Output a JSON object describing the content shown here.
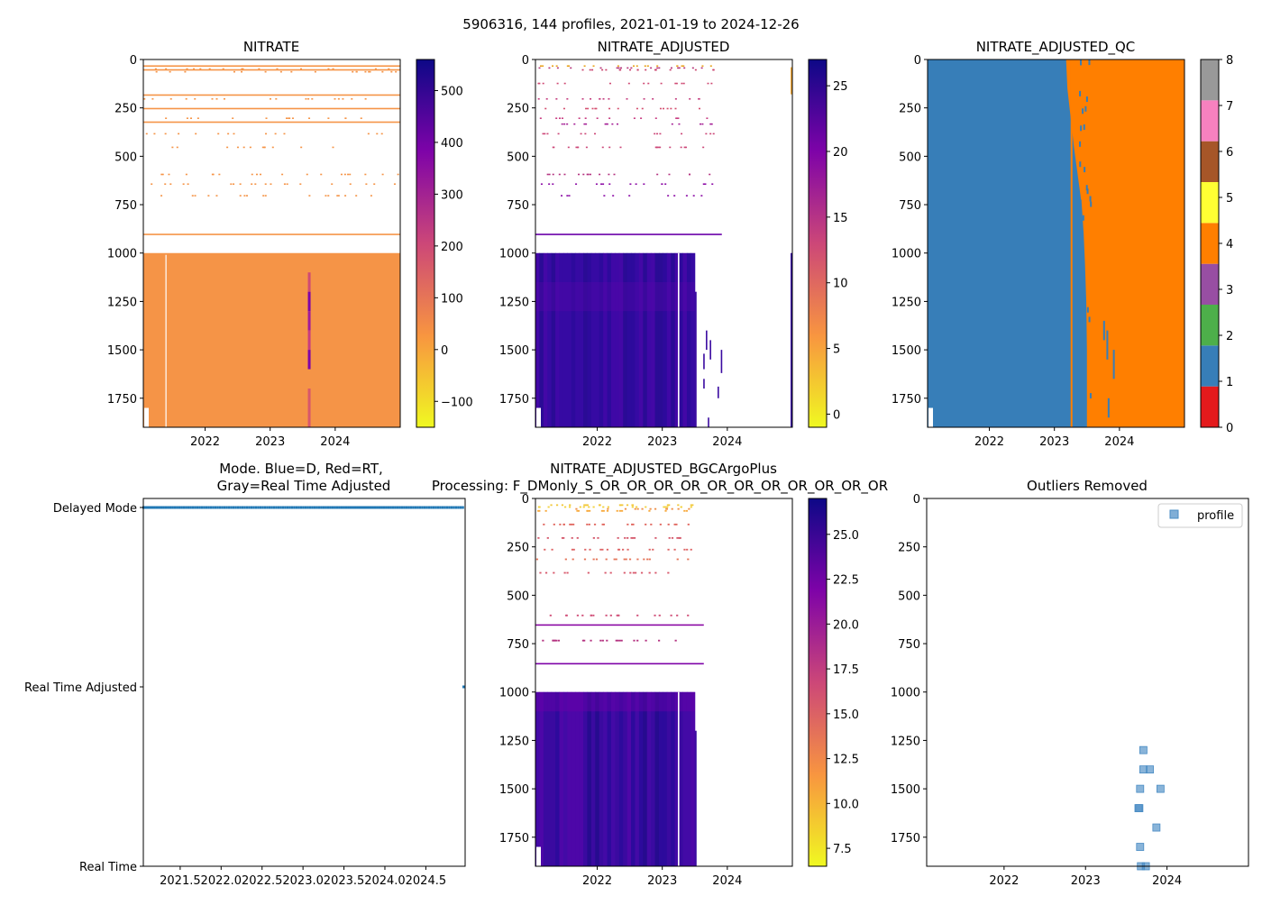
{
  "figure": {
    "suptitle": "5906316, 144 profiles, 2021-01-19 to 2024-12-26"
  },
  "colors": {
    "orange": "#f59447",
    "orange_qc": "#ff7f00",
    "blue_qc": "#377eb8",
    "deep_purple": "#2d0a9c",
    "purple2": "#3a0aa0",
    "dmode_blue": "#1f77b4",
    "scatter_blue": "#4a8cc4"
  },
  "chart_data": [
    {
      "id": "nitrate",
      "type": "heatmap",
      "title": "NITRATE",
      "x_ticks": [
        "2022",
        "2023",
        "2024"
      ],
      "y_ticks": [
        "0",
        "250",
        "500",
        "750",
        "1000",
        "1250",
        "1500",
        "1750"
      ],
      "xlim": [
        2021.05,
        2025.0
      ],
      "ylim": [
        1900,
        0
      ],
      "colorbar": {
        "min": -150,
        "max": 560,
        "ticks": [
          "−100",
          "0",
          "100",
          "200",
          "300",
          "400",
          "500"
        ],
        "tick_values": [
          -100,
          0,
          100,
          200,
          300,
          400,
          500
        ],
        "colormap": "plasma_r"
      },
      "dominant_value": 30,
      "note": "Sparse samples above 1000 dbar, continuous field below 1000 dbar"
    },
    {
      "id": "nitrate_adjusted",
      "type": "heatmap",
      "title": "NITRATE_ADJUSTED",
      "x_ticks": [
        "2022",
        "2023",
        "2024"
      ],
      "y_ticks": [
        "0",
        "250",
        "500",
        "750",
        "1000",
        "1250",
        "1500",
        "1750"
      ],
      "xlim": [
        2021.05,
        2025.0
      ],
      "ylim": [
        1900,
        0
      ],
      "colorbar": {
        "min": -1,
        "max": 27,
        "ticks": [
          "0",
          "5",
          "10",
          "15",
          "20",
          "25"
        ],
        "tick_values": [
          0,
          5,
          10,
          15,
          20,
          25
        ],
        "colormap": "plasma_r"
      },
      "deep_value_range": [
        23,
        27
      ],
      "data_end_year": 2023.5
    },
    {
      "id": "nitrate_adjusted_qc",
      "type": "heatmap",
      "title": "NITRATE_ADJUSTED_QC",
      "x_ticks": [
        "2022",
        "2023",
        "2024"
      ],
      "y_ticks": [
        "0",
        "250",
        "500",
        "750",
        "1000",
        "1250",
        "1500",
        "1750"
      ],
      "xlim": [
        2021.05,
        2025.0
      ],
      "ylim": [
        1900,
        0
      ],
      "colorbar": {
        "min": 0,
        "max": 8,
        "ticks": [
          "0",
          "1",
          "2",
          "3",
          "4",
          "5",
          "6",
          "7",
          "8"
        ],
        "categories": [
          {
            "flag": 0,
            "color": "#e41a1c"
          },
          {
            "flag": 1,
            "color": "#377eb8"
          },
          {
            "flag": 2,
            "color": "#4daf4a"
          },
          {
            "flag": 3,
            "color": "#984ea3"
          },
          {
            "flag": 4,
            "color": "#ff7f00"
          },
          {
            "flag": 5,
            "color": "#ffff33"
          },
          {
            "flag": 6,
            "color": "#a65628"
          },
          {
            "flag": 7,
            "color": "#f781bf"
          },
          {
            "flag": 8,
            "color": "#999999"
          }
        ]
      },
      "flag_1_until_year": 2023.0,
      "flag_4_from_year": 2023.6
    },
    {
      "id": "mode",
      "type": "scatter",
      "title_line1": "Mode. Blue=D, Red=RT,",
      "title_line2": "Gray=Real Time Adjusted",
      "y_categories": [
        "Delayed Mode",
        "Real Time Adjusted",
        "Real Time"
      ],
      "x_ticks": [
        "2021.5",
        "2022.0",
        "2022.5",
        "2023.0",
        "2023.5",
        "2024.0",
        "2024.5"
      ],
      "x_tick_values": [
        2021.5,
        2022.0,
        2022.5,
        2023.0,
        2023.5,
        2024.0,
        2024.5
      ],
      "xlim": [
        2021.05,
        2024.98
      ],
      "series": [
        {
          "name": "Delayed Mode",
          "x_range": [
            2021.05,
            2024.95
          ],
          "count": 143
        },
        {
          "name": "Real Time Adjusted",
          "x": [
            2024.98
          ]
        }
      ]
    },
    {
      "id": "nitrate_adjusted_bgcargoplus",
      "type": "heatmap",
      "title_line1": "NITRATE_ADJUSTED_BGCArgoPlus",
      "title_line2": "Processing: F_DMonly_S_OR_OR_OR_OR_OR_OR_OR_OR_OR_OR_OR",
      "x_ticks": [
        "2022",
        "2023",
        "2024"
      ],
      "y_ticks": [
        "0",
        "250",
        "500",
        "750",
        "1000",
        "1250",
        "1500",
        "1750"
      ],
      "xlim": [
        2021.05,
        2025.0
      ],
      "ylim": [
        1900,
        0
      ],
      "colorbar": {
        "min": 6.5,
        "max": 27,
        "ticks": [
          "7.5",
          "10.0",
          "12.5",
          "15.0",
          "17.5",
          "20.0",
          "22.5",
          "25.0"
        ],
        "tick_values": [
          7.5,
          10.0,
          12.5,
          15.0,
          17.5,
          20.0,
          22.5,
          25.0
        ],
        "colormap": "plasma_r"
      },
      "data_end_year": 2023.5
    },
    {
      "id": "outliers",
      "type": "scatter",
      "title": "Outliers Removed",
      "legend": "profile",
      "x_ticks": [
        "2022",
        "2023",
        "2024"
      ],
      "x_tick_values": [
        2022,
        2023,
        2024
      ],
      "y_ticks": [
        "0",
        "250",
        "500",
        "750",
        "1000",
        "1250",
        "1500",
        "1750"
      ],
      "xlim": [
        2021.05,
        2025.0
      ],
      "ylim": [
        1900,
        0
      ],
      "points": [
        {
          "x": 2023.71,
          "y": 1300
        },
        {
          "x": 2023.71,
          "y": 1400
        },
        {
          "x": 2023.79,
          "y": 1400
        },
        {
          "x": 2023.67,
          "y": 1500
        },
        {
          "x": 2023.92,
          "y": 1500
        },
        {
          "x": 2023.65,
          "y": 1600
        },
        {
          "x": 2023.66,
          "y": 1600
        },
        {
          "x": 2023.87,
          "y": 1700
        },
        {
          "x": 2023.67,
          "y": 1800
        },
        {
          "x": 2023.68,
          "y": 1900
        },
        {
          "x": 2023.74,
          "y": 1900
        }
      ]
    }
  ]
}
